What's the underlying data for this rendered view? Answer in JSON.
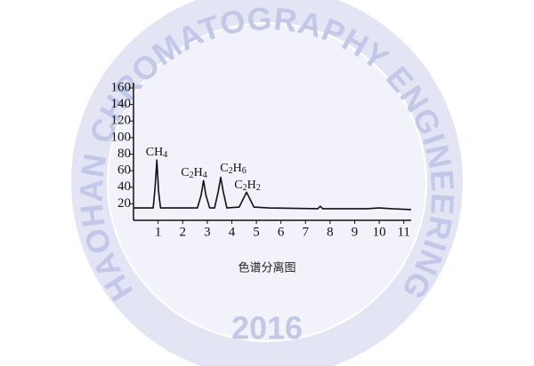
{
  "watermark": {
    "text": "HAOHAN CHROMATOGRAPHY ENGINEERING",
    "year": "2016"
  },
  "chart_data": {
    "type": "line",
    "caption": "色谱分离图",
    "x": [
      0,
      0.8,
      0.88,
      0.95,
      1.02,
      1.1,
      2.6,
      2.75,
      2.85,
      2.95,
      3.1,
      3.3,
      3.45,
      3.55,
      3.65,
      3.8,
      4.3,
      4.5,
      4.6,
      4.7,
      4.9,
      5.5,
      7.5,
      7.6,
      7.7,
      8.5,
      9.5,
      10,
      10.5,
      11.3
    ],
    "series": [
      {
        "color": "#111111",
        "values": [
          15,
          15,
          40,
          73,
          35,
          15,
          15,
          30,
          48,
          30,
          15,
          15,
          35,
          52,
          35,
          15,
          16,
          28,
          34,
          28,
          16,
          15,
          14,
          17,
          14,
          14,
          14,
          15,
          14,
          13
        ]
      }
    ],
    "annotations": [
      "CH4",
      "C2H4",
      "C2H6",
      "C2H2"
    ],
    "xlim": [
      0,
      11.3
    ],
    "xticks": [
      1,
      2,
      3,
      4,
      5,
      6,
      7,
      8,
      9,
      10,
      11
    ],
    "ylim": [
      0,
      160
    ],
    "yticks": [
      20,
      40,
      60,
      80,
      100,
      120,
      140,
      160
    ]
  }
}
